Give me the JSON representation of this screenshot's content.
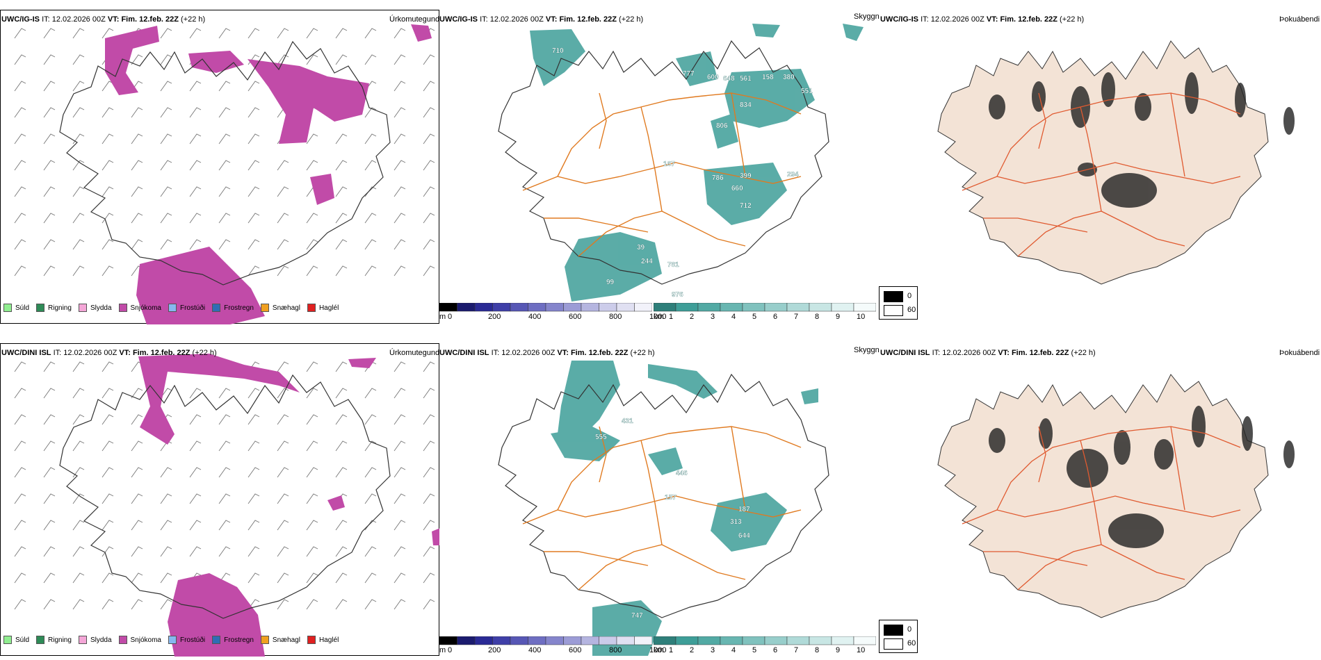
{
  "rows": [
    {
      "model": "UWC/IG-IS",
      "it_label": "IT:",
      "it_value": "12.02.2026 00Z",
      "vt_label": "VT:",
      "vt_value": "Fim. 12.feb. 22Z",
      "lead": "(+22 h)"
    },
    {
      "model": "UWC/DINI ISL",
      "it_label": "IT:",
      "it_value": "12.02.2026 00Z",
      "vt_label": "VT:",
      "vt_value": "Fim. 12.feb. 22Z",
      "lead": "(+22 h)"
    }
  ],
  "panel_types": {
    "precip": "Úrkomutegund",
    "visibility": "Skyggni",
    "fog": "Þokuábendi"
  },
  "legend": [
    {
      "label": "Súld",
      "color": "#90EE90"
    },
    {
      "label": "Rigning",
      "color": "#2E8B57"
    },
    {
      "label": "Slydda",
      "color": "#F4A6D7"
    },
    {
      "label": "Snjókoma",
      "color": "#C14BA8"
    },
    {
      "label": "Frostúði",
      "color": "#87B8F0"
    },
    {
      "label": "Frostregn",
      "color": "#2F6DB5"
    },
    {
      "label": "Snæhagl",
      "color": "#F0A020"
    },
    {
      "label": "Haglél",
      "color": "#E02020"
    }
  ],
  "ceiling_scale": {
    "unit": "m",
    "ticks": [
      "0",
      "200",
      "400",
      "600",
      "800",
      "1000"
    ]
  },
  "visibility_scale": {
    "unit": "km",
    "ticks": [
      "1",
      "2",
      "3",
      "4",
      "5",
      "6",
      "7",
      "8",
      "9",
      "10"
    ]
  },
  "fog_scale": {
    "ticks": [
      "0",
      "60"
    ]
  },
  "ceiling_labels_top": [
    "710",
    "777",
    "600",
    "648",
    "561",
    "158",
    "380",
    "551",
    "834",
    "806",
    "167",
    "786",
    "399",
    "660",
    "294",
    "712",
    "39",
    "244",
    "781",
    "99",
    "976"
  ],
  "ceiling_labels_bottom": [
    "431",
    "555",
    "446",
    "157",
    "187",
    "313",
    "644",
    "747"
  ],
  "colors": {
    "snow": "#C14BA8",
    "fog_green": "#3E9E98",
    "roads": "#E07A20",
    "land_fog": "#F3E3D6",
    "fog_roads": "#E05A30"
  }
}
